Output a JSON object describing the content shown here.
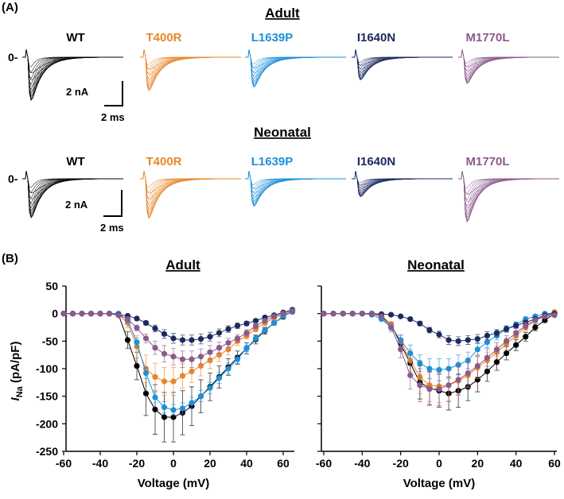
{
  "panel_a": {
    "label": "(A)",
    "zero_label": "0-",
    "groups": [
      {
        "title": "Adult",
        "scale_current": "2 nA",
        "scale_time": "2 ms"
      },
      {
        "title": "Neonatal",
        "scale_current": "2 nA",
        "scale_time": "2 ms"
      }
    ],
    "variants": [
      {
        "name": "WT",
        "color": "#000000"
      },
      {
        "name": "T400R",
        "color": "#E8862A"
      },
      {
        "name": "L1639P",
        "color": "#1F8FD8"
      },
      {
        "name": "I1640N",
        "color": "#1B2A5E"
      },
      {
        "name": "M1770L",
        "color": "#8B5A8C"
      }
    ]
  },
  "panel_b": {
    "label": "(B)"
  },
  "chart_data": [
    {
      "type": "line",
      "title": "Adult",
      "xlabel": "Voltage (mV)",
      "ylabel": "I_Na (pA/pF)",
      "ylabel_main": "I",
      "ylabel_sub": "Na",
      "ylabel_unit": " (pA/pF)",
      "xlim": [
        -60,
        65
      ],
      "ylim": [
        -250,
        50
      ],
      "xticks": [
        "-60",
        "-40",
        "-20",
        "0",
        "20",
        "40",
        "60"
      ],
      "yticks": [
        "50",
        "0",
        "-50",
        "-100",
        "-150",
        "-200",
        "-250"
      ],
      "grid": false,
      "x": [
        -60,
        -55,
        -50,
        -45,
        -40,
        -35,
        -30,
        -25,
        -20,
        -15,
        -10,
        -5,
        0,
        5,
        10,
        15,
        20,
        25,
        30,
        35,
        40,
        45,
        50,
        55,
        60,
        65
      ],
      "series": [
        {
          "name": "WT",
          "color": "#000000",
          "values": [
            0,
            0,
            0,
            0,
            0,
            0,
            -2,
            -48,
            -95,
            -145,
            -174,
            -188,
            -188,
            -180,
            -168,
            -150,
            -133,
            -115,
            -97,
            -80,
            -63,
            -47,
            -31,
            -17,
            -6,
            5
          ],
          "error": [
            0,
            0,
            0,
            0,
            0,
            0,
            2,
            15,
            25,
            40,
            45,
            45,
            45,
            40,
            35,
            30,
            25,
            20,
            15,
            12,
            10,
            8,
            6,
            4,
            3,
            3
          ]
        },
        {
          "name": "T400R",
          "color": "#E8862A",
          "values": [
            0,
            0,
            0,
            0,
            0,
            0,
            -3,
            -17,
            -60,
            -100,
            -115,
            -123,
            -123,
            -113,
            -105,
            -95,
            -85,
            -75,
            -65,
            -50,
            -40,
            -28,
            -17,
            -8,
            -2,
            3
          ],
          "error": [
            0,
            0,
            0,
            0,
            0,
            0,
            2,
            8,
            20,
            25,
            25,
            25,
            25,
            22,
            20,
            18,
            15,
            12,
            10,
            8,
            6,
            5,
            4,
            3,
            2,
            2
          ]
        },
        {
          "name": "L1639P",
          "color": "#1F8FD8",
          "values": [
            0,
            0,
            0,
            0,
            0,
            0,
            0,
            -12,
            -52,
            -108,
            -152,
            -170,
            -175,
            -172,
            -162,
            -150,
            -135,
            -117,
            -100,
            -83,
            -63,
            -45,
            -30,
            -17,
            -5,
            3
          ],
          "error": [
            0,
            0,
            0,
            0,
            0,
            0,
            1,
            4,
            8,
            10,
            10,
            10,
            10,
            10,
            10,
            10,
            10,
            10,
            10,
            8,
            6,
            5,
            4,
            3,
            2,
            2
          ]
        },
        {
          "name": "I1640N",
          "color": "#1B2A5E",
          "values": [
            0,
            0,
            0,
            0,
            0,
            0,
            -2,
            -4,
            -9,
            -17,
            -27,
            -37,
            -45,
            -48,
            -48,
            -46,
            -42,
            -35,
            -28,
            -22,
            -18,
            -13,
            -7,
            -3,
            2,
            7
          ],
          "error": [
            0,
            0,
            0,
            0,
            0,
            0,
            1,
            2,
            3,
            4,
            6,
            8,
            9,
            9,
            9,
            9,
            8,
            7,
            6,
            5,
            4,
            3,
            3,
            2,
            2,
            2
          ]
        },
        {
          "name": "M1770L",
          "color": "#8B5A8C",
          "values": [
            0,
            0,
            0,
            0,
            0,
            0,
            -3,
            -10,
            -26,
            -45,
            -62,
            -73,
            -78,
            -83,
            -83,
            -78,
            -70,
            -62,
            -53,
            -45,
            -35,
            -22,
            -13,
            -5,
            0,
            5
          ],
          "error": [
            0,
            0,
            0,
            0,
            0,
            0,
            2,
            3,
            5,
            8,
            12,
            15,
            15,
            15,
            15,
            14,
            12,
            10,
            8,
            7,
            6,
            5,
            4,
            3,
            2,
            2
          ]
        }
      ]
    },
    {
      "type": "line",
      "title": "Neonatal",
      "xlabel": "Voltage (mV)",
      "xlim": [
        -60,
        60
      ],
      "ylim": [
        -250,
        50
      ],
      "xticks": [
        "-60",
        "-40",
        "-20",
        "0",
        "20",
        "40",
        "60"
      ],
      "grid": false,
      "x": [
        -60,
        -55,
        -50,
        -45,
        -40,
        -35,
        -30,
        -25,
        -20,
        -15,
        -10,
        -5,
        0,
        5,
        10,
        15,
        20,
        25,
        30,
        35,
        40,
        45,
        50,
        55,
        60
      ],
      "series": [
        {
          "name": "WT",
          "color": "#000000",
          "values": [
            0,
            0,
            0,
            0,
            0,
            0,
            -5,
            -20,
            -55,
            -90,
            -125,
            -135,
            -140,
            -145,
            -140,
            -133,
            -120,
            -105,
            -88,
            -72,
            -57,
            -42,
            -25,
            -12,
            0
          ],
          "error": [
            0,
            0,
            0,
            0,
            0,
            0,
            2,
            5,
            10,
            20,
            30,
            30,
            30,
            30,
            30,
            25,
            22,
            18,
            15,
            12,
            10,
            8,
            6,
            4,
            3
          ]
        },
        {
          "name": "T400R",
          "color": "#E8862A",
          "values": [
            0,
            0,
            0,
            0,
            0,
            0,
            -3,
            -20,
            -50,
            -85,
            -115,
            -130,
            -132,
            -130,
            -122,
            -112,
            -98,
            -85,
            -70,
            -55,
            -40,
            -25,
            -12,
            -3,
            3
          ],
          "error": [
            0,
            0,
            0,
            0,
            0,
            0,
            2,
            5,
            10,
            20,
            30,
            30,
            30,
            28,
            25,
            22,
            20,
            15,
            12,
            10,
            8,
            6,
            4,
            3,
            2
          ]
        },
        {
          "name": "L1639P",
          "color": "#1F8FD8",
          "values": [
            0,
            0,
            0,
            0,
            0,
            -2,
            -10,
            -25,
            -48,
            -72,
            -90,
            -100,
            -102,
            -100,
            -93,
            -85,
            -65,
            -52,
            -40,
            -28,
            -20,
            -10,
            -5,
            0,
            0
          ],
          "error": [
            0,
            0,
            0,
            0,
            0,
            1,
            3,
            5,
            10,
            15,
            15,
            18,
            20,
            18,
            18,
            15,
            12,
            10,
            8,
            6,
            5,
            4,
            3,
            2,
            2
          ]
        },
        {
          "name": "I1640N",
          "color": "#1B2A5E",
          "values": [
            0,
            0,
            0,
            0,
            0,
            0,
            -1,
            -2,
            -5,
            -10,
            -18,
            -30,
            -38,
            -48,
            -50,
            -48,
            -46,
            -40,
            -35,
            -28,
            -22,
            -16,
            -10,
            -3,
            0
          ],
          "error": [
            0,
            0,
            0,
            0,
            0,
            0,
            1,
            1,
            2,
            3,
            4,
            5,
            6,
            8,
            8,
            8,
            8,
            7,
            6,
            5,
            4,
            3,
            3,
            2,
            2
          ]
        },
        {
          "name": "M1770L",
          "color": "#8B5A8C",
          "values": [
            0,
            0,
            0,
            0,
            0,
            0,
            -5,
            -25,
            -65,
            -112,
            -130,
            -137,
            -137,
            -130,
            -120,
            -108,
            -95,
            -80,
            -65,
            -50,
            -35,
            -22,
            -12,
            -5,
            -3
          ],
          "error": [
            0,
            0,
            0,
            0,
            0,
            0,
            2,
            8,
            15,
            25,
            30,
            30,
            30,
            30,
            28,
            25,
            20,
            16,
            12,
            10,
            8,
            6,
            4,
            3,
            2
          ]
        }
      ]
    }
  ]
}
